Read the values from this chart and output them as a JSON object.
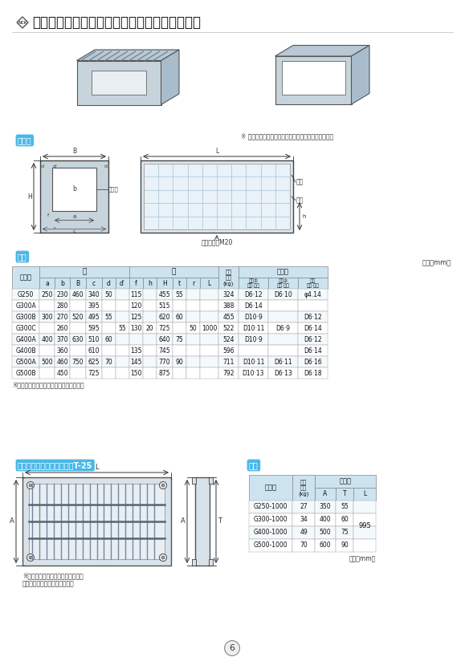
{
  "title": "道路側溝横断用（グレーチングボルト固定式）",
  "page_num": "6",
  "bg_color": "#ffffff",
  "section_label_bg": "#4ab8e8",
  "header_bg": "#cce4f0",
  "header_bg2": "#ddeef8",
  "main_table_rows": [
    [
      "G250",
      "250",
      "230",
      "460",
      "340",
      "50",
      "",
      "115",
      "",
      "455",
      "55",
      "",
      "",
      "324",
      "D6·12",
      "D6·10",
      "φ4.14"
    ],
    [
      "G300A",
      "",
      "280",
      "",
      "395",
      "",
      "",
      "120",
      "",
      "515",
      "",
      "",
      "",
      "388",
      "D6·14",
      "",
      ""
    ],
    [
      "G300B",
      "300",
      "270",
      "520",
      "495",
      "55",
      "",
      "125",
      "",
      "620",
      "60",
      "",
      "",
      "455",
      "D10·9",
      "",
      "D6·12"
    ],
    [
      "G300C",
      "",
      "260",
      "",
      "595",
      "",
      "55",
      "130",
      "20",
      "725",
      "",
      "50",
      "1000",
      "522",
      "D10·11",
      "D6·9",
      "D6·14"
    ],
    [
      "G400A",
      "400",
      "370",
      "630",
      "510",
      "60",
      "",
      "",
      "",
      "640",
      "75",
      "",
      "",
      "524",
      "D10·9",
      "",
      "D6·12"
    ],
    [
      "G400B",
      "",
      "360",
      "",
      "610",
      "",
      "",
      "135",
      "",
      "745",
      "",
      "",
      "",
      "596",
      "",
      "",
      "D6·14"
    ],
    [
      "G500A",
      "500",
      "460",
      "750",
      "625",
      "70",
      "",
      "145",
      "",
      "770",
      "90",
      "",
      "",
      "711",
      "D10·11",
      "D6·11",
      "D6·16"
    ],
    [
      "G500B",
      "",
      "450",
      "",
      "725",
      "",
      "",
      "150",
      "",
      "875",
      "",
      "",
      "",
      "792",
      "D10·13",
      "D6·13",
      "D6·18"
    ]
  ],
  "small_table_rows": [
    [
      "G250-1000",
      "27",
      "350",
      "55",
      ""
    ],
    [
      "G300-1000",
      "34",
      "400",
      "60",
      "995"
    ],
    [
      "G400-1000",
      "49",
      "500",
      "75",
      ""
    ],
    [
      "G500-1000",
      "70",
      "600",
      "90",
      ""
    ]
  ],
  "main_table_note": "※サイズによっては受注生産となります。",
  "note_product": "※ 角欠け防止アングル入りもあります。（受注生産）",
  "note_grating1": "※普通目が標準となっております。",
  "note_grating2": "　細目は受注生産となります。",
  "inset_label": "インサートM20",
  "label_hongai": "本　体",
  "label_shiyou": "仕様",
  "label_grating_lid": "グレーチング蓋（固定式）T-25",
  "label_tatekin": "縦筋",
  "label_yokokin": "横筋",
  "label_mejiibu": "目地部"
}
